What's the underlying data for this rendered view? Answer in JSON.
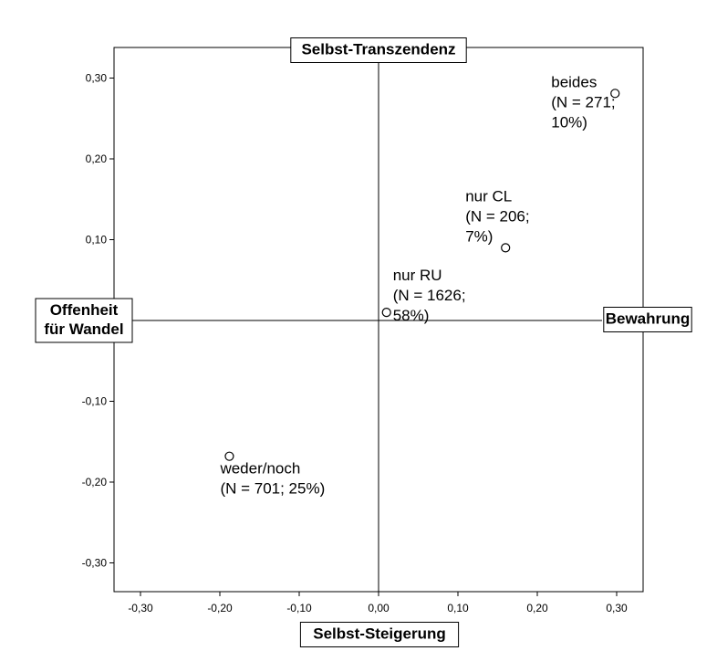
{
  "chart_data": {
    "type": "scatter",
    "xlim": [
      -0.33,
      0.33
    ],
    "ylim": [
      -0.335,
      0.335
    ],
    "x_ticks": [
      {
        "value": -0.3,
        "label": "-0,30"
      },
      {
        "value": -0.2,
        "label": "-0,20"
      },
      {
        "value": -0.1,
        "label": "-0,10"
      },
      {
        "value": 0.0,
        "label": "0,00"
      },
      {
        "value": 0.1,
        "label": "0,10"
      },
      {
        "value": 0.2,
        "label": "0,20"
      },
      {
        "value": 0.3,
        "label": "0,30"
      }
    ],
    "y_ticks": [
      {
        "value": 0.3,
        "label": "0,30"
      },
      {
        "value": 0.2,
        "label": "0,20"
      },
      {
        "value": 0.1,
        "label": "0,10"
      },
      {
        "value": -0.1,
        "label": "-0,10"
      },
      {
        "value": -0.2,
        "label": "-0,20"
      },
      {
        "value": -0.3,
        "label": "-0,30"
      }
    ],
    "axis_poles": {
      "top": "Selbst-Transzendenz",
      "bottom": "Selbst-Steigerung",
      "left": [
        "Offenheit",
        "für Wandel"
      ],
      "right": "Bewahrung"
    },
    "points": [
      {
        "name": "beides",
        "x": 0.298,
        "y": 0.281,
        "label_lines": [
          "beides",
          "(N = 271;",
          "10%)"
        ]
      },
      {
        "name": "nur CL",
        "x": 0.16,
        "y": 0.09,
        "label_lines": [
          "nur CL",
          "(N = 206;",
          "7%)"
        ]
      },
      {
        "name": "nur RU",
        "x": 0.01,
        "y": 0.01,
        "label_lines": [
          "nur RU",
          "(N = 1626;",
          "58%)"
        ]
      },
      {
        "name": "weder/noch",
        "x": -0.188,
        "y": -0.168,
        "label_lines": [
          "weder/noch",
          "(N = 701; 25%)"
        ]
      }
    ]
  }
}
